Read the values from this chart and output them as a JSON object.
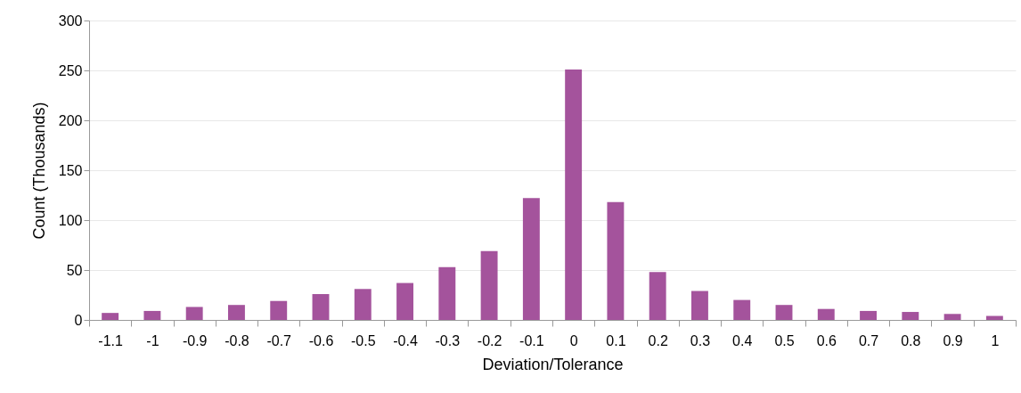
{
  "chart_data": {
    "type": "bar",
    "xlabel": "Deviation/Tolerance",
    "ylabel": "Count (Thousands)",
    "categories": [
      "-1.1",
      "-1",
      "-0.9",
      "-0.8",
      "-0.7",
      "-0.6",
      "-0.5",
      "-0.4",
      "-0.3",
      "-0.2",
      "-0.1",
      "0",
      "0.1",
      "0.2",
      "0.3",
      "0.4",
      "0.5",
      "0.6",
      "0.7",
      "0.8",
      "0.9",
      "1"
    ],
    "values": [
      7,
      9,
      13,
      15,
      19,
      26,
      31,
      37,
      53,
      69,
      122,
      251,
      118,
      48,
      29,
      20,
      15,
      11,
      9,
      8,
      6,
      4
    ],
    "color": "#a4539c",
    "ylim": [
      0,
      300
    ],
    "yticks": [
      0,
      50,
      100,
      150,
      200,
      250,
      300
    ],
    "grid": "y"
  }
}
